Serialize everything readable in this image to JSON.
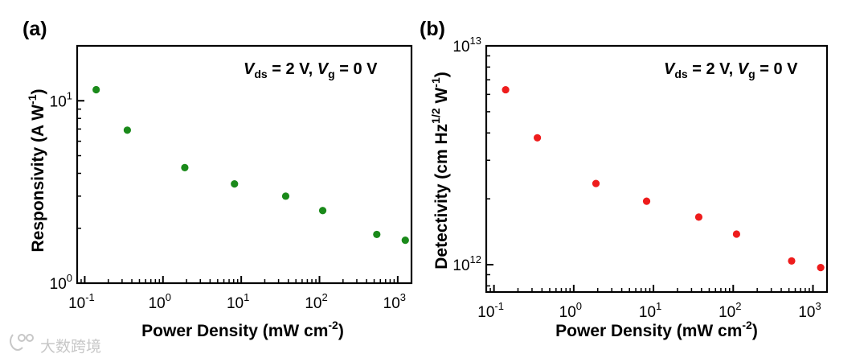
{
  "chart_data": [
    {
      "type": "scatter",
      "panel_label": "(a)",
      "xscale": "log",
      "yscale": "log",
      "xlim": [
        0.08,
        1500
      ],
      "ylim": [
        1,
        20
      ],
      "x_ticks": [
        {
          "value": 0.1,
          "base": "10",
          "exp": "-1"
        },
        {
          "value": 1,
          "base": "10",
          "exp": "0"
        },
        {
          "value": 10,
          "base": "10",
          "exp": "1"
        },
        {
          "value": 100,
          "base": "10",
          "exp": "2"
        },
        {
          "value": 1000,
          "base": "10",
          "exp": "3"
        }
      ],
      "y_ticks": [
        {
          "value": 1,
          "base": "10",
          "exp": "0"
        },
        {
          "value": 10,
          "base": "10",
          "exp": "1"
        }
      ],
      "xlabel": {
        "main": "Power Density (mW cm",
        "sup": "-2",
        "close": ")"
      },
      "ylabel": {
        "main": "Responsivity (A W",
        "sup": "-1",
        "close": ")"
      },
      "annotation": {
        "v1": "V",
        "sub1": "ds",
        "mid": " = 2 V, ",
        "v2": "V",
        "sub2": "g",
        "end": " = 0 V"
      },
      "color": "#1a8a1a",
      "series": [
        {
          "name": "Responsivity",
          "x": [
            0.14,
            0.35,
            1.9,
            8.2,
            37,
            110,
            540,
            1250
          ],
          "y": [
            11.5,
            6.9,
            4.3,
            3.5,
            3.0,
            2.5,
            1.85,
            1.72
          ]
        }
      ]
    },
    {
      "type": "scatter",
      "panel_label": "(b)",
      "xscale": "log",
      "yscale": "log",
      "xlim": [
        0.08,
        1500
      ],
      "ylim": [
        750000000000.0,
        10000000000000.0
      ],
      "x_ticks": [
        {
          "value": 0.1,
          "base": "10",
          "exp": "-1"
        },
        {
          "value": 1,
          "base": "10",
          "exp": "0"
        },
        {
          "value": 10,
          "base": "10",
          "exp": "1"
        },
        {
          "value": 100,
          "base": "10",
          "exp": "2"
        },
        {
          "value": 1000,
          "base": "10",
          "exp": "3"
        }
      ],
      "y_ticks": [
        {
          "value": 1000000000000.0,
          "base": "10",
          "exp": "12"
        },
        {
          "value": 10000000000000.0,
          "base": "10",
          "exp": "13"
        }
      ],
      "xlabel": {
        "main": "Power Density (mW cm",
        "sup": "-2",
        "close": ")"
      },
      "ylabel": {
        "main": "Detectivity (cm Hz",
        "sup": "1/2",
        "mid": " W",
        "sup2": "-1",
        "close": ")"
      },
      "annotation": {
        "v1": "V",
        "sub1": "ds",
        "mid": " = 2 V, ",
        "v2": "V",
        "sub2": "g",
        "end": " = 0 V"
      },
      "color": "#ee1c1c",
      "series": [
        {
          "name": "Detectivity",
          "x": [
            0.14,
            0.35,
            1.9,
            8.2,
            37,
            110,
            540,
            1250
          ],
          "y": [
            6300000000000.0,
            3800000000000.0,
            2350000000000.0,
            1950000000000.0,
            1650000000000.0,
            1380000000000.0,
            1040000000000.0,
            970000000000.0
          ]
        }
      ]
    }
  ],
  "watermark": {
    "text": "大数跨境"
  }
}
